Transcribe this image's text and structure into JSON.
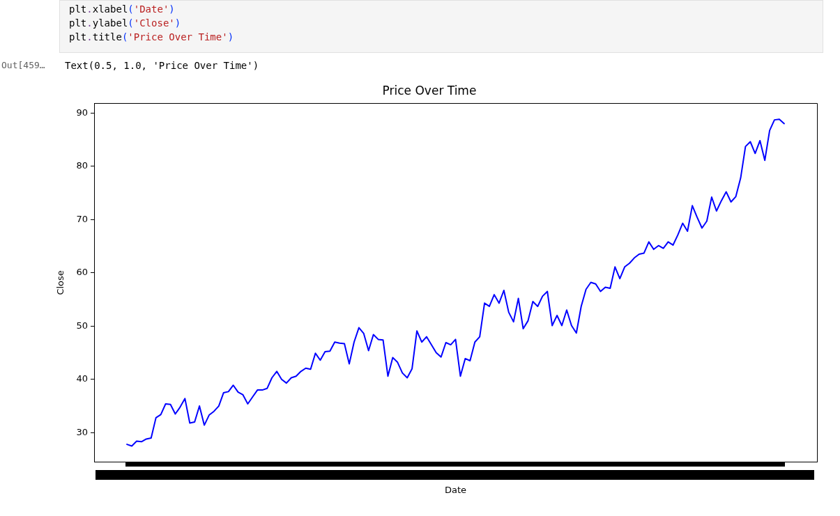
{
  "chart_data": {
    "type": "line",
    "title": "Price Over Time",
    "xlabel": "Date",
    "ylabel": "Close",
    "annotations": [
      "plt.xlabel('Date')",
      "plt.ylabel('Close')",
      "plt.title('Price Over Time')",
      "Out[459…",
      "Text(0.5, 1.0, 'Price Over Time')"
    ],
    "categories": [
      null,
      null,
      null,
      null,
      null,
      null,
      null,
      null,
      null,
      null,
      null,
      null,
      null,
      null,
      null,
      null,
      null,
      null,
      null,
      null,
      null,
      null,
      null,
      null,
      null,
      null,
      null,
      null,
      null,
      null,
      null,
      null,
      null,
      null,
      null,
      null,
      null,
      null,
      null,
      null,
      null,
      null,
      null,
      null,
      null,
      null,
      null,
      null,
      null,
      null,
      null,
      null,
      null,
      null,
      null,
      null,
      null,
      null,
      null,
      null,
      null,
      null,
      null,
      null,
      null,
      null,
      null,
      null,
      null,
      null,
      null,
      null,
      null,
      null,
      null,
      null,
      null,
      null,
      null,
      null,
      null,
      null,
      null,
      null,
      null,
      null,
      null,
      null,
      null,
      null,
      null,
      null,
      null,
      null,
      null,
      null,
      null,
      null,
      null,
      null,
      null,
      null,
      null,
      null,
      null,
      null,
      null,
      null,
      null,
      null,
      null,
      null,
      null,
      null,
      null,
      null,
      null,
      null,
      null,
      null,
      null,
      null,
      null,
      null,
      null,
      null,
      null,
      null,
      null,
      null,
      null,
      null,
      null,
      null,
      null,
      null,
      null
    ],
    "values": [
      27.8,
      27.5,
      28.4,
      28.3,
      28.8,
      29.0,
      32.8,
      33.4,
      35.4,
      35.3,
      33.5,
      34.8,
      36.4,
      31.8,
      32.0,
      35.0,
      31.4,
      33.3,
      34.0,
      35.0,
      37.5,
      37.7,
      38.9,
      37.6,
      37.1,
      35.4,
      36.7,
      38.0,
      38.0,
      38.3,
      40.3,
      41.5,
      40.0,
      39.3,
      40.3,
      40.6,
      41.5,
      42.1,
      41.9,
      44.9,
      43.6,
      45.2,
      45.3,
      47.0,
      46.8,
      46.7,
      42.9,
      47.0,
      49.7,
      48.6,
      45.4,
      48.4,
      47.5,
      47.4,
      40.6,
      44.1,
      43.2,
      41.2,
      40.3,
      42.0,
      49.1,
      47.0,
      48.0,
      46.5,
      45.0,
      44.2,
      46.9,
      46.5,
      47.5,
      40.6,
      43.9,
      43.5,
      47.0,
      48.0,
      54.3,
      53.7,
      55.9,
      54.3,
      56.7,
      52.6,
      50.8,
      55.2,
      49.5,
      51.0,
      54.6,
      53.7,
      55.6,
      56.5,
      50.1,
      52.0,
      50.1,
      53.0,
      50.1,
      48.7,
      53.7,
      56.9,
      58.2,
      57.9,
      56.5,
      57.3,
      57.1,
      61.1,
      58.9,
      61.1,
      61.8,
      62.8,
      63.5,
      63.7,
      65.8,
      64.4,
      65.1,
      64.6,
      65.8,
      65.2,
      67.1,
      69.3,
      67.8,
      72.6,
      70.4,
      68.4,
      69.7,
      74.2,
      71.6,
      73.5,
      75.2,
      73.3,
      74.3,
      77.8,
      83.7,
      84.6,
      82.4,
      84.8,
      81.1,
      86.7,
      88.7,
      88.8,
      88.0
    ],
    "color": "#0000ff",
    "ylim": [
      24.5,
      91.8
    ],
    "yticks": [
      30,
      40,
      50,
      60,
      70,
      80,
      90
    ],
    "grid": false,
    "legend": false,
    "tick_labels": "y",
    "marker": "none"
  }
}
